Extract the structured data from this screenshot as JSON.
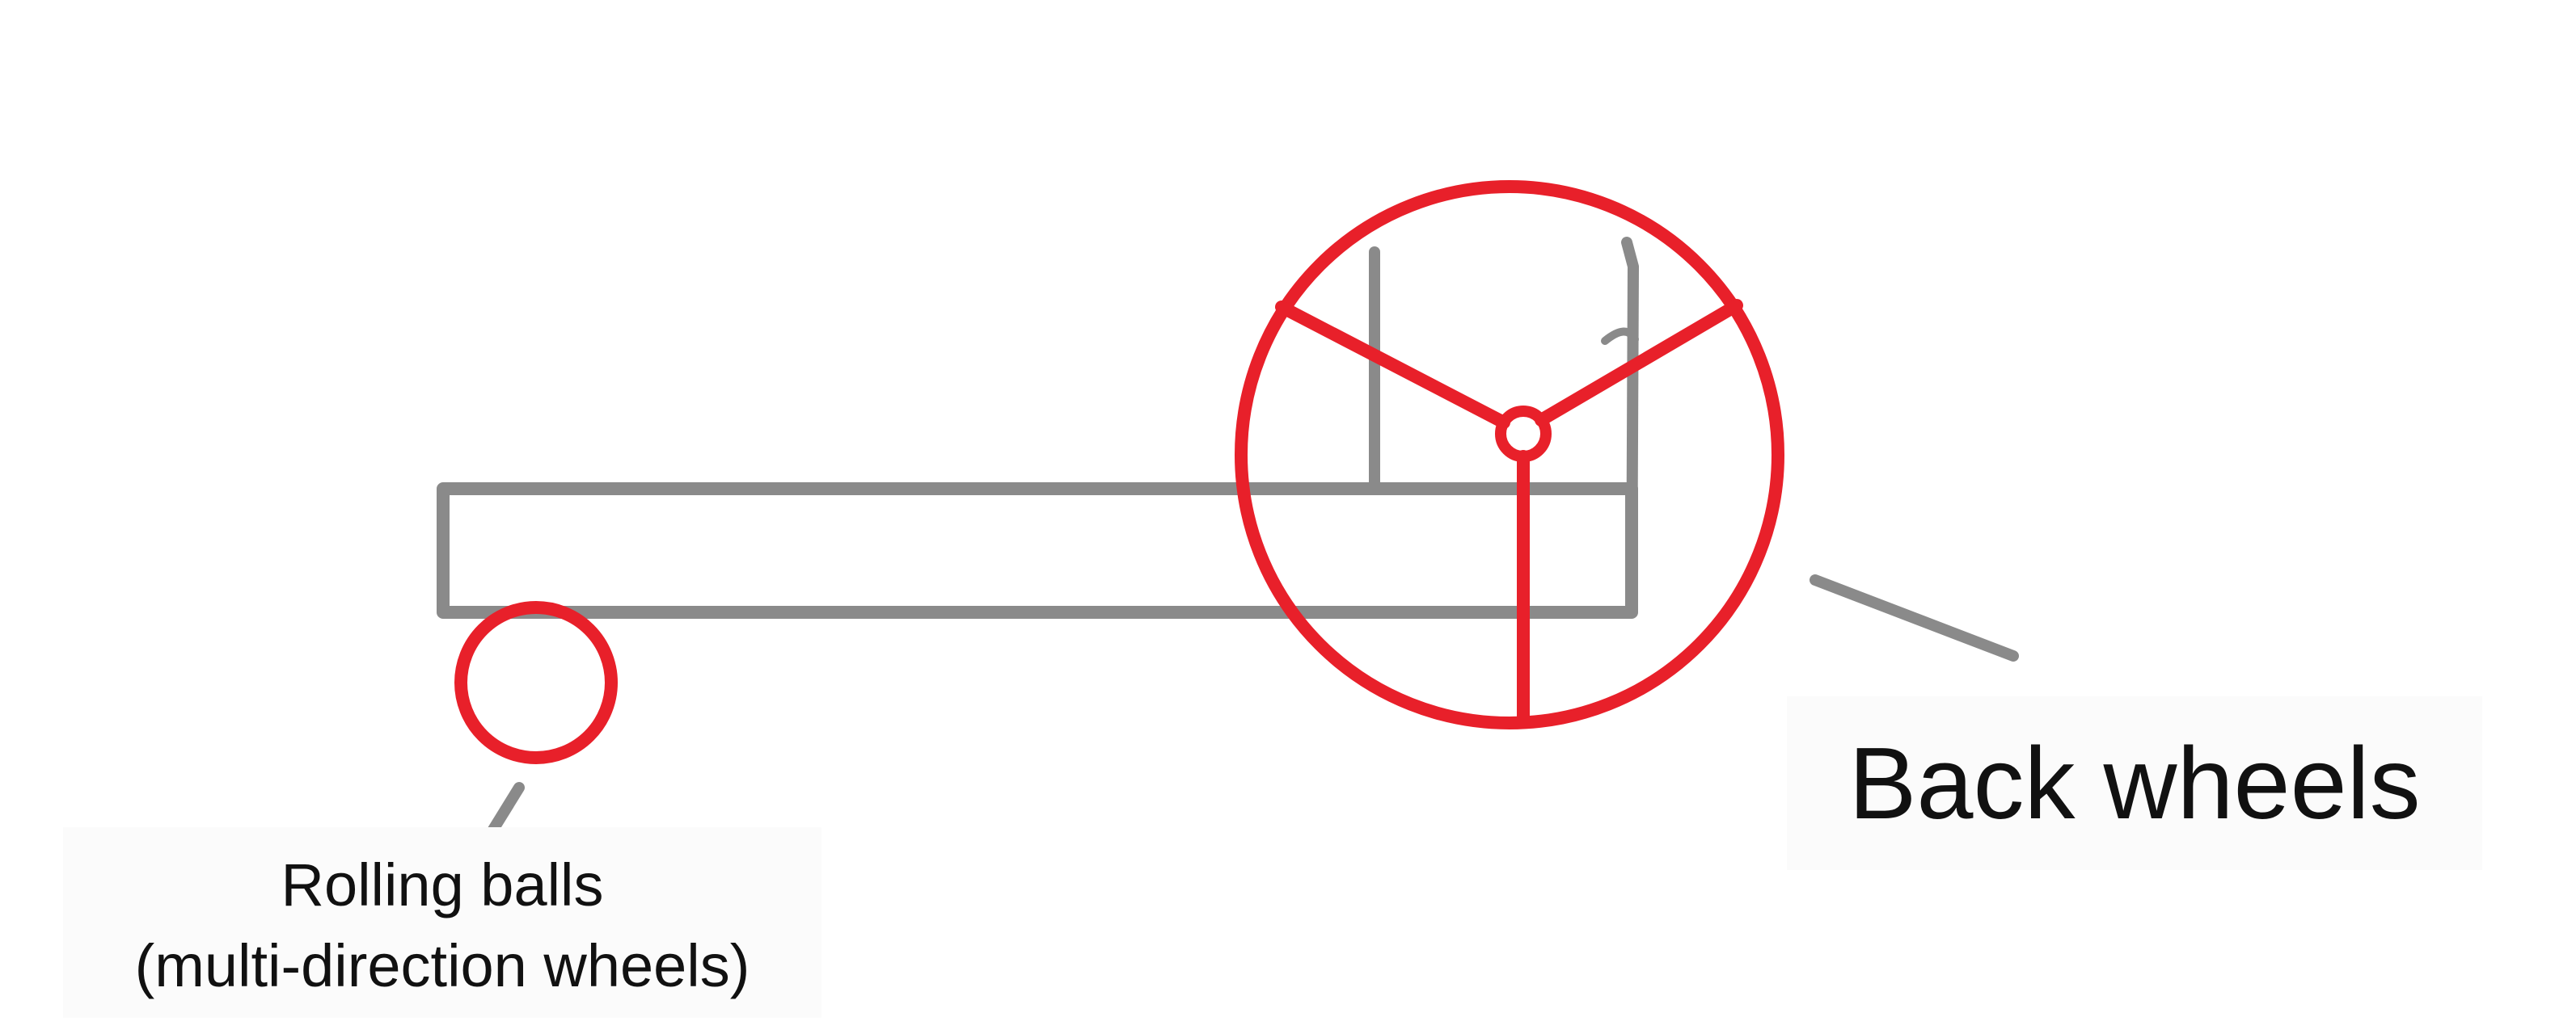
{
  "diagram": {
    "labels": {
      "rolling_balls": {
        "line1": "Rolling balls",
        "line2": "(multi-direction wheels)"
      },
      "back_wheels": "Back wheels"
    },
    "colors": {
      "sketch": "#8a8a8a",
      "highlight": "#e8202a",
      "label_text": "#111111",
      "label_background": "#fbfbfb"
    }
  }
}
